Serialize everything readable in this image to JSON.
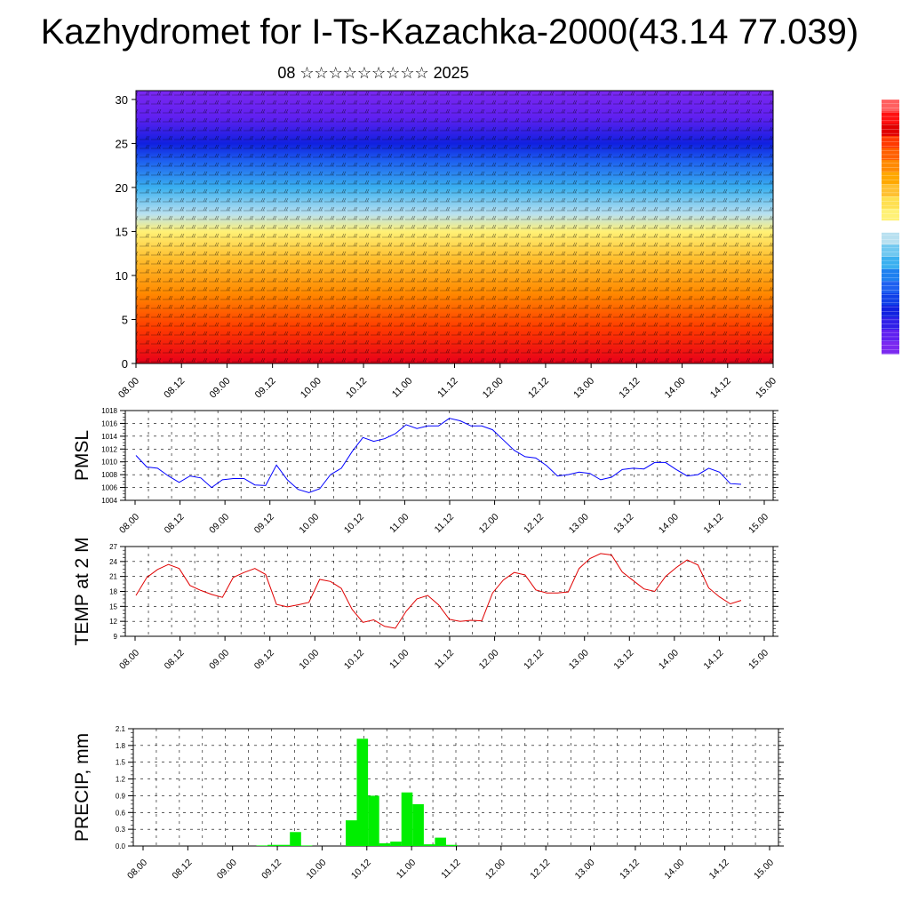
{
  "header": {
    "title": "Kazhydromet for I-Ts-Kazachka-2000(43.14 77.039)",
    "subtitle": "08 ☆☆☆☆☆☆☆☆☆ 2025"
  },
  "time_ticks": [
    "08.00",
    "08.12",
    "09.00",
    "09.12",
    "10.00",
    "10.12",
    "11.00",
    "11.12",
    "12.00",
    "12.12",
    "13.00",
    "13.12",
    "14.00",
    "14.12",
    "15.00"
  ],
  "chart_data": [
    {
      "type": "heatmap",
      "title": "",
      "ylabel": "",
      "ylim": [
        0,
        31
      ],
      "yticks": [
        0,
        5,
        10,
        15,
        20,
        25,
        30
      ],
      "description_in_data": "Temperature-like color field with wind barbs; warm (red) near surface, cold (purple) aloft",
      "color_stops": [
        {
          "y": 0,
          "color": "#e8001a"
        },
        {
          "y": 4,
          "color": "#ff3a00"
        },
        {
          "y": 8,
          "color": "#ff8a00"
        },
        {
          "y": 12,
          "color": "#ffc030"
        },
        {
          "y": 15,
          "color": "#fff176"
        },
        {
          "y": 17,
          "color": "#b8e0f0"
        },
        {
          "y": 20,
          "color": "#3ab0f0"
        },
        {
          "y": 23,
          "color": "#1e60f0"
        },
        {
          "y": 25,
          "color": "#1020e0"
        },
        {
          "y": 28,
          "color": "#6020f0"
        },
        {
          "y": 31,
          "color": "#7a28f0"
        }
      ]
    },
    {
      "type": "line",
      "ylabel": "PMSL",
      "ylim": [
        1004,
        1018
      ],
      "yticks": [
        1004,
        1006,
        1008,
        1010,
        1012,
        1014,
        1016,
        1018
      ],
      "color": "#0000ff",
      "values": [
        1011.0,
        1009.2,
        1009.0,
        1007.8,
        1006.8,
        1007.8,
        1007.5,
        1006.0,
        1007.2,
        1007.4,
        1007.4,
        1006.4,
        1006.3,
        1009.5,
        1007.2,
        1005.7,
        1005.2,
        1005.8,
        1008.0,
        1009.0,
        1011.6,
        1013.8,
        1013.2,
        1013.6,
        1014.4,
        1015.8,
        1015.2,
        1015.6,
        1015.6,
        1016.8,
        1016.4,
        1015.6,
        1015.6,
        1015.0,
        1013.4,
        1011.8,
        1010.8,
        1010.6,
        1009.4,
        1007.8,
        1008.0,
        1008.4,
        1008.2,
        1007.2,
        1007.6,
        1008.8,
        1009.0,
        1008.9,
        1009.9,
        1009.9,
        1008.8,
        1007.8,
        1008.0,
        1009.0,
        1008.4,
        1006.6,
        1006.5
      ]
    },
    {
      "type": "line",
      "ylabel": "TEMP at 2 M",
      "ylim": [
        9,
        27
      ],
      "yticks": [
        9,
        12,
        15,
        18,
        21,
        24,
        27
      ],
      "color": "#e00000",
      "values": [
        17.2,
        20.8,
        22.4,
        23.4,
        22.6,
        19.2,
        18.2,
        17.4,
        16.8,
        20.8,
        21.8,
        22.6,
        21.4,
        15.4,
        14.9,
        15.3,
        15.8,
        20.4,
        20.0,
        18.6,
        14.4,
        11.8,
        12.3,
        11.0,
        10.6,
        14.0,
        16.5,
        17.2,
        15.3,
        12.4,
        12.0,
        12.2,
        12.1,
        17.7,
        20.3,
        21.8,
        21.3,
        18.3,
        17.7,
        17.7,
        17.9,
        22.6,
        24.6,
        25.6,
        25.3,
        21.9,
        20.2,
        18.5,
        18.0,
        21.0,
        22.8,
        24.3,
        23.3,
        18.7,
        16.9,
        15.5,
        16.2
      ]
    },
    {
      "type": "bar",
      "ylabel": "PRECIP, mm",
      "ylim": [
        0,
        2.1
      ],
      "yticks": [
        "0.0",
        "0.3",
        "0.6",
        "0.9",
        "1.2",
        "1.5",
        "1.8",
        "2.1"
      ],
      "color": "#00ee00",
      "values": [
        0,
        0,
        0,
        0,
        0,
        0,
        0,
        0,
        0,
        0,
        0.01,
        0.02,
        0.02,
        0.25,
        0.01,
        0,
        0,
        0,
        0.46,
        1.92,
        0.9,
        0.05,
        0.08,
        0.96,
        0.75,
        0.03,
        0.15,
        0.02,
        0,
        0,
        0,
        0,
        0,
        0,
        0,
        0,
        0,
        0,
        0,
        0,
        0,
        0,
        0,
        0,
        0,
        0,
        0,
        0,
        0,
        0,
        0,
        0,
        0,
        0,
        0,
        0
      ]
    }
  ],
  "colorbar": {
    "colors": [
      "#ff6060",
      "#ff1010",
      "#e00000",
      "#ff3a00",
      "#ff6000",
      "#ff8a00",
      "#ffa800",
      "#ffc030",
      "#ffe050",
      "#fff176",
      "#ffffff",
      "#b8e0f0",
      "#70c8f0",
      "#3ab0f0",
      "#1e80f0",
      "#1e60f0",
      "#1040e8",
      "#1020e0",
      "#3020e8",
      "#6020f0",
      "#7a28f0"
    ]
  }
}
